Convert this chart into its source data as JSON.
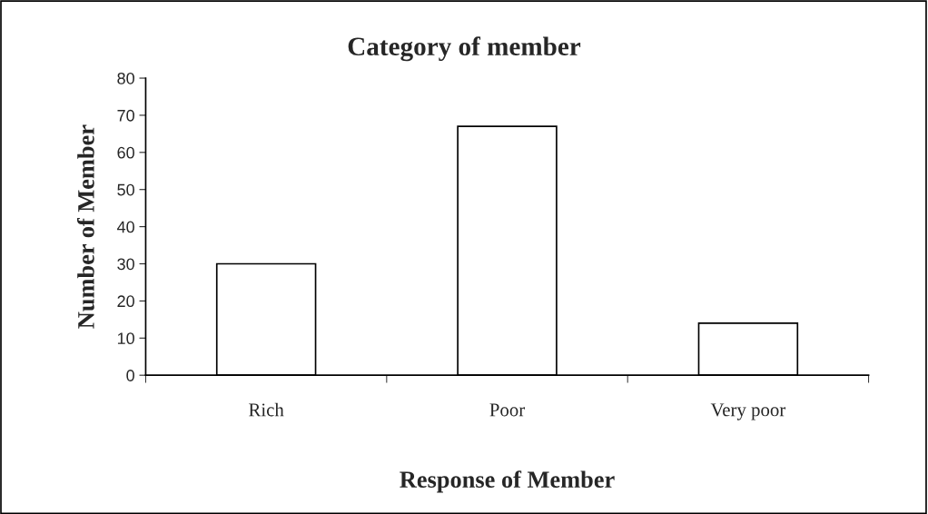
{
  "chart_data": {
    "type": "bar",
    "title": "Category of member",
    "xlabel": "Response of Member",
    "ylabel": "Number of Member",
    "categories": [
      "Rich",
      "Poor",
      "Very poor"
    ],
    "values": [
      30,
      67,
      14
    ],
    "color": "#ffffff",
    "ylim": [
      0,
      80
    ],
    "yticks": [
      0,
      10,
      20,
      30,
      40,
      50,
      60,
      70,
      80
    ],
    "grid": false,
    "legend": false
  }
}
